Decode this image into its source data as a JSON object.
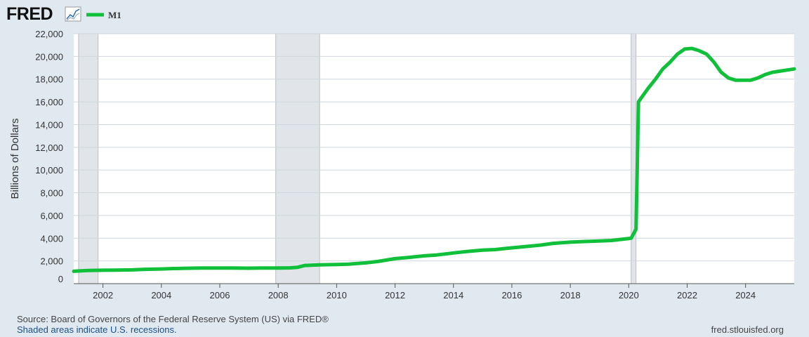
{
  "brand": {
    "logo_text": "FRED",
    "logo_icon": "trend-line-icon"
  },
  "colors": {
    "line": "#10c03a",
    "recession": "#e1e5e9",
    "background": "#e1e9f0",
    "plot": "#ffffff",
    "grid": "#cfd6dd"
  },
  "footer": {
    "source": "Source: Board of Governors of the Federal Reserve System (US) via FRED®",
    "recession_note": "Shaded areas indicate U.S. recessions.",
    "site": "fred.stlouisfed.org"
  },
  "chart_data": {
    "type": "line",
    "title": "",
    "xlabel": "",
    "ylabel": "Billions of Dollars",
    "ylim": [
      0,
      22000
    ],
    "xlim": [
      "2001-01",
      "2025-09"
    ],
    "y_ticks": [
      "0",
      "2,000",
      "4,000",
      "6,000",
      "8,000",
      "10,000",
      "12,000",
      "14,000",
      "16,000",
      "18,000",
      "20,000",
      "22,000"
    ],
    "x_ticks": [
      "2002",
      "2004",
      "2006",
      "2008",
      "2010",
      "2012",
      "2014",
      "2016",
      "2018",
      "2020",
      "2022",
      "2024"
    ],
    "grid": true,
    "legend": "top-left",
    "recessions": [
      [
        "2001-03",
        "2001-11"
      ],
      [
        "2007-12",
        "2009-06"
      ],
      [
        "2020-02",
        "2020-04"
      ]
    ],
    "series": [
      {
        "name": "M1",
        "x": [
          "2001-01",
          "2001-06",
          "2002-01",
          "2002-06",
          "2003-01",
          "2003-06",
          "2004-01",
          "2004-06",
          "2005-01",
          "2005-06",
          "2006-01",
          "2006-06",
          "2007-01",
          "2007-06",
          "2008-01",
          "2008-06",
          "2008-09",
          "2008-12",
          "2009-06",
          "2010-01",
          "2010-06",
          "2011-01",
          "2011-06",
          "2012-01",
          "2012-06",
          "2013-01",
          "2013-06",
          "2014-01",
          "2014-06",
          "2015-01",
          "2015-06",
          "2016-01",
          "2016-06",
          "2017-01",
          "2017-06",
          "2018-01",
          "2018-06",
          "2019-01",
          "2019-06",
          "2019-12",
          "2020-02",
          "2020-04",
          "2020-05",
          "2020-06",
          "2020-09",
          "2020-12",
          "2021-03",
          "2021-06",
          "2021-09",
          "2021-12",
          "2022-03",
          "2022-06",
          "2022-09",
          "2022-12",
          "2023-03",
          "2023-06",
          "2023-09",
          "2023-12",
          "2024-03",
          "2024-06",
          "2024-09",
          "2024-12",
          "2025-03",
          "2025-06",
          "2025-09"
        ],
        "values": [
          1090,
          1150,
          1180,
          1190,
          1210,
          1260,
          1290,
          1330,
          1360,
          1380,
          1380,
          1370,
          1360,
          1370,
          1370,
          1390,
          1440,
          1600,
          1650,
          1690,
          1720,
          1830,
          1950,
          2200,
          2290,
          2450,
          2520,
          2700,
          2820,
          2950,
          3000,
          3150,
          3250,
          3400,
          3550,
          3650,
          3700,
          3750,
          3800,
          3950,
          4000,
          4800,
          16000,
          16300,
          17200,
          18000,
          18900,
          19500,
          20200,
          20650,
          20700,
          20500,
          20200,
          19500,
          18600,
          18100,
          17900,
          17900,
          17900,
          18100,
          18400,
          18600,
          18700,
          18800,
          18900
        ]
      }
    ]
  }
}
